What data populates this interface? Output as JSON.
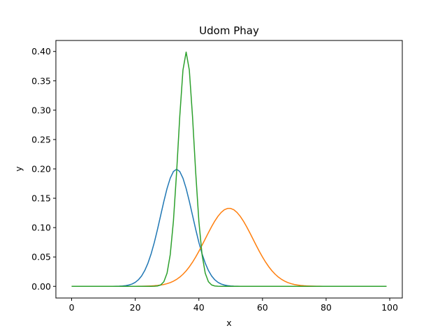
{
  "chart_data": {
    "type": "line",
    "title": "Udom Phay",
    "xlabel": "x",
    "ylabel": "y",
    "xlim": [
      -4.95,
      103.95
    ],
    "ylim": [
      -0.0199,
      0.4187
    ],
    "xticks": [
      0,
      20,
      40,
      60,
      80,
      100
    ],
    "xtick_labels": [
      "0",
      "20",
      "40",
      "60",
      "80",
      "100"
    ],
    "yticks": [
      0.0,
      0.05,
      0.1,
      0.15,
      0.2,
      0.25,
      0.3,
      0.35,
      0.4
    ],
    "ytick_labels": [
      "0.00",
      "0.05",
      "0.10",
      "0.15",
      "0.20",
      "0.25",
      "0.30",
      "0.35",
      "0.40"
    ],
    "grid": false,
    "series": [
      {
        "color": "#1f77b4",
        "mean": 33,
        "sd": 2.0,
        "x_range": [
          0,
          99
        ]
      },
      {
        "color": "#ff7f0e",
        "mean": 49.5,
        "sd": 3.0,
        "x_range": [
          0,
          99
        ]
      },
      {
        "color": "#2ca02c",
        "mean": 36,
        "sd": 1.0,
        "x_range": [
          0,
          99
        ]
      }
    ],
    "series_note_x_step": 1
  }
}
